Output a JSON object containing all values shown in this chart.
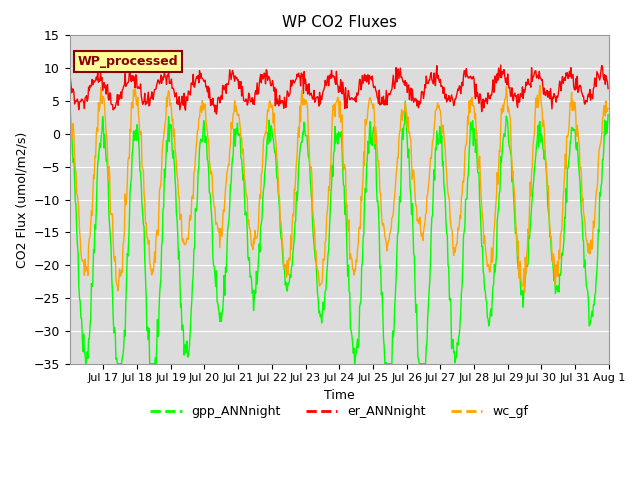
{
  "title": "WP CO2 Fluxes",
  "xlabel": "Time",
  "ylabel_display": "CO2 Flux (umol/m2/s)",
  "ylim": [
    -35,
    15
  ],
  "yticks": [
    -35,
    -30,
    -25,
    -20,
    -15,
    -10,
    -5,
    0,
    5,
    10,
    15
  ],
  "gpp_color": "#00FF00",
  "er_color": "#FF0000",
  "wc_color": "#FFA500",
  "bg_color": "#DCDCDC",
  "annotation_text": "WP_processed",
  "annotation_fg": "#8B0000",
  "annotation_bg": "#FFFF99",
  "legend_labels": [
    "gpp_ANNnight",
    "er_ANNnight",
    "wc_gf"
  ],
  "linewidth": 1.0,
  "xtick_labels": [
    "Jul 17",
    "Jul 18",
    "Jul 19",
    "Jul 20",
    "Jul 21",
    "Jul 22",
    "Jul 23",
    "Jul 24",
    "Jul 25",
    "Jul 26",
    "Jul 27",
    "Jul 28",
    "Jul 29",
    "Jul 30",
    "Jul 31",
    "Aug 1"
  ],
  "n_days": 16,
  "pts_per_day": 48
}
